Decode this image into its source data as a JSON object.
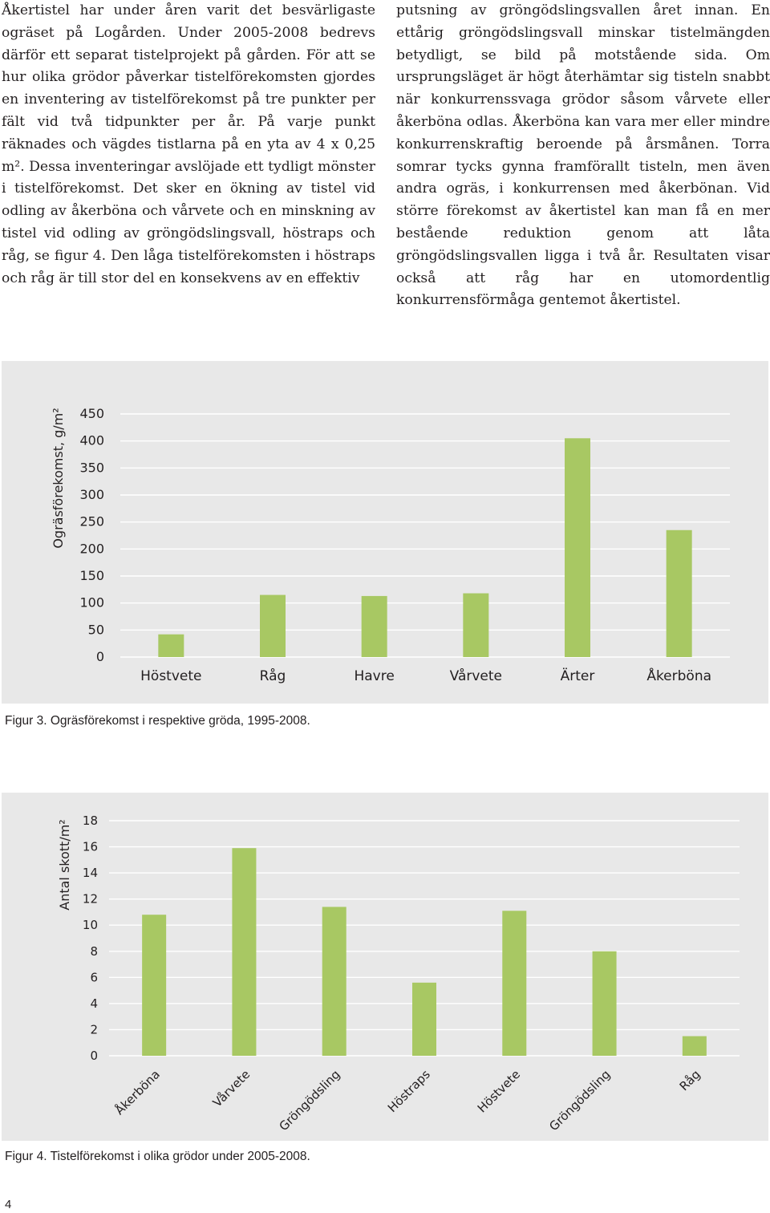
{
  "body_text": {
    "left_column": "Åkertistel har under åren varit det besvärligaste ogräset på Logården. Under 2005-2008 bedrevs därför ett separat tistelprojekt på gården. För att se hur olika grödor påverkar tistelförekomsten gjordes en inventering av tistelförekomst på tre punkter per fält vid två tidpunkter per år. På varje punkt räknades och vägdes tistlarna på en yta av 4 x 0,25 m². Dessa inventeringar avslöjade ett tydligt mönster i tistelförekomst. Det sker en ökning av tistel vid odling av åkerböna och vårvete och en minskning av tistel vid odling av gröngödslingsvall, höstraps och råg, se figur 4. Den låga tistelförekomsten i höstraps och råg är till stor del en konsekvens av en effektiv",
    "right_column": "putsning av gröngödslingsvallen året innan. En ettårig gröngödslingsvall minskar tistelmängden betydligt, se bild på motstående sida. Om ursprungsläget är högt återhämtar sig tisteln snabbt när konkurrenssvaga grödor såsom vårvete eller åkerböna odlas. Åkerböna kan vara mer eller mindre konkurrenskraftig beroende på årsmånen. Torra somrar tycks gynna framförallt tisteln, men även andra ogräs, i konkurrensen med åkerbönan. Vid större förekomst av åkertistel kan man få en mer bestående reduktion genom att låta gröngödslingsvallen ligga i två år. Resultaten visar också att råg har en utomordentlig konkurrensförmåga gentemot åkertistel."
  },
  "chart_data": [
    {
      "type": "bar",
      "categories": [
        "Höstvete",
        "Råg",
        "Havre",
        "Vårvete",
        "Ärter",
        "Åkerböna"
      ],
      "values": [
        42,
        115,
        113,
        118,
        405,
        235
      ],
      "title": "",
      "xlabel": "",
      "ylabel": "Ogräsförekomst, g/m²",
      "ylim": [
        0,
        450
      ],
      "yticks": [
        0,
        50,
        100,
        150,
        200,
        250,
        300,
        350,
        400,
        450
      ],
      "grid": true,
      "color": "#a8c863",
      "background": "#e8e8e8"
    },
    {
      "type": "bar",
      "categories": [
        "Åkerböna",
        "Vårvete",
        "Gröngödsling",
        "Höstraps",
        "Höstvete",
        "Gröngödsling",
        "Råg"
      ],
      "values": [
        10.8,
        15.9,
        11.4,
        5.6,
        11.1,
        8.0,
        1.5
      ],
      "title": "",
      "xlabel": "",
      "ylabel": "Antal skott/m²",
      "ylim": [
        0,
        18
      ],
      "yticks": [
        0,
        2,
        4,
        6,
        8,
        10,
        12,
        14,
        16,
        18
      ],
      "grid": true,
      "tick_label_rotation": -45,
      "color": "#a8c863",
      "background": "#e8e8e8"
    }
  ],
  "captions": {
    "fig3": "Figur 3. Ogräsförekomst i respektive gröda, 1995-2008.",
    "fig4": "Figur 4. Tistelförekomst i olika grödor under 2005-2008."
  },
  "page_number": "4"
}
